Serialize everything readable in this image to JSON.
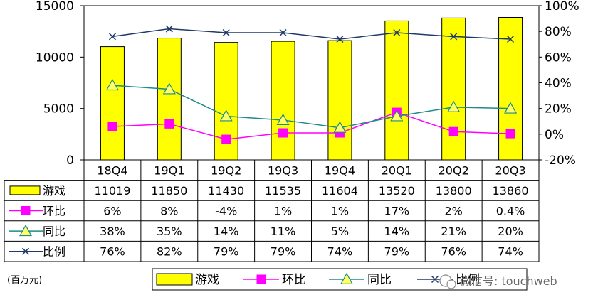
{
  "unit_label": "(百万元)",
  "watermark": "微信号: touchweb",
  "chart_data": {
    "type": "bar",
    "categories": [
      "18Q4",
      "19Q1",
      "19Q2",
      "19Q3",
      "19Q4",
      "20Q1",
      "20Q2",
      "20Q3"
    ],
    "ylim": [
      0,
      15000
    ],
    "y_ticks": [
      "15000",
      "10000",
      "5000",
      "0"
    ],
    "y2lim": [
      -20,
      100
    ],
    "y2_ticks": [
      "100%",
      "80%",
      "60%",
      "40%",
      "20%",
      "0%",
      "-20%"
    ],
    "grid": false,
    "legend_position": "bottom",
    "bar_color": "#ffff00",
    "series": [
      {
        "name": "游戏",
        "kind": "bar",
        "axis": "left",
        "color": "#ffff00",
        "values": [
          11019,
          11850,
          11430,
          11535,
          11604,
          13520,
          13800,
          13860
        ],
        "labels": [
          "11019",
          "11850",
          "11430",
          "11535",
          "11604",
          "13520",
          "13800",
          "13860"
        ]
      },
      {
        "name": "环比",
        "kind": "line",
        "axis": "right",
        "marker": "square",
        "color": "#ff00ff",
        "values": [
          6,
          8,
          -4,
          1,
          1,
          17,
          2,
          0.4
        ],
        "labels": [
          "6%",
          "8%",
          "-4%",
          "1%",
          "1%",
          "17%",
          "2%",
          "0.4%"
        ]
      },
      {
        "name": "同比",
        "kind": "line",
        "axis": "right",
        "marker": "triangle",
        "color": "#1f8a8a",
        "values": [
          38,
          35,
          14,
          11,
          5,
          14,
          21,
          20
        ],
        "labels": [
          "38%",
          "35%",
          "14%",
          "11%",
          "5%",
          "14%",
          "21%",
          "20%"
        ]
      },
      {
        "name": "比例",
        "kind": "line",
        "axis": "right",
        "marker": "x",
        "color": "#1f3a68",
        "values": [
          76,
          82,
          79,
          79,
          74,
          79,
          76,
          74
        ],
        "labels": [
          "76%",
          "82%",
          "79%",
          "79%",
          "74%",
          "79%",
          "76%",
          "74%"
        ]
      }
    ]
  }
}
